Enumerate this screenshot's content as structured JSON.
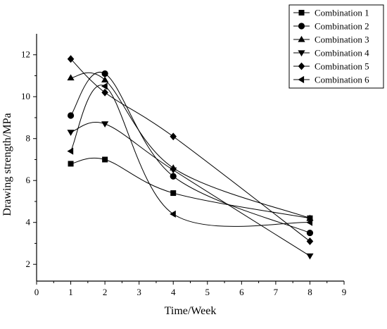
{
  "chart_data": {
    "type": "line",
    "title": "",
    "xlabel": "Time/Week",
    "ylabel": "Drawing strength/MPa",
    "xlim": [
      0,
      9
    ],
    "ylim": [
      1.2,
      13
    ],
    "x_ticks": [
      "0",
      "1",
      "2",
      "3",
      "4",
      "5",
      "6",
      "7",
      "8",
      "9"
    ],
    "y_ticks": [
      "2",
      "4",
      "6",
      "8",
      "10",
      "12"
    ],
    "grid": false,
    "legend_position": "top-right",
    "line_style": "smooth",
    "series": [
      {
        "name": "Combination 1",
        "marker": "square",
        "x": [
          1,
          2,
          4,
          8
        ],
        "y": [
          6.8,
          7.0,
          5.4,
          4.2
        ]
      },
      {
        "name": "Combination 2",
        "marker": "circle",
        "x": [
          1,
          2,
          4,
          8
        ],
        "y": [
          9.1,
          11.1,
          6.2,
          3.5
        ]
      },
      {
        "name": "Combination 3",
        "marker": "triangle-up",
        "x": [
          1,
          2,
          4,
          8
        ],
        "y": [
          10.9,
          10.8,
          6.6,
          4.2
        ]
      },
      {
        "name": "Combination 4",
        "marker": "triangle-down",
        "x": [
          1,
          2,
          4,
          8
        ],
        "y": [
          8.3,
          8.7,
          6.5,
          2.4
        ]
      },
      {
        "name": "Combination 5",
        "marker": "diamond",
        "x": [
          1,
          2,
          4,
          8
        ],
        "y": [
          11.8,
          10.2,
          8.1,
          3.1
        ]
      },
      {
        "name": "Combination 6",
        "marker": "triangle-left",
        "x": [
          1,
          2,
          4,
          8
        ],
        "y": [
          7.4,
          10.5,
          4.4,
          4.0
        ]
      }
    ]
  }
}
